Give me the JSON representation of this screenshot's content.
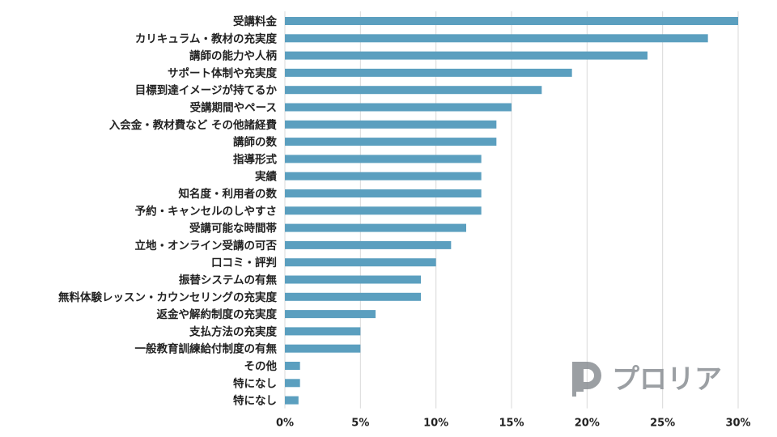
{
  "chart_data": {
    "type": "bar",
    "orientation": "horizontal",
    "categories": [
      "受講料金",
      "カリキュラム・教材の充実度",
      "講師の能力や人柄",
      "サポート体制や充実度",
      "目標到達イメージが持てるか",
      "受講期間やペース",
      "入会金・教材費など その他諸経費",
      "講師の数",
      "指導形式",
      "実績",
      "知名度・利用者の数",
      "予約・キャンセルのしやすさ",
      "受講可能な時間帯",
      "立地・オンライン受講の可否",
      "口コミ・評判",
      "振替システムの有無",
      "無料体験レッスン・カウンセリングの充実度",
      "返金や解約制度の充実度",
      "支払方法の充実度",
      "一般教育訓練給付制度の有無",
      "その他",
      "特になし",
      "特になし"
    ],
    "values": [
      30,
      28,
      24,
      19,
      17,
      15,
      14,
      14,
      13,
      13,
      13,
      13,
      12,
      11,
      10,
      9,
      9,
      6,
      5,
      5,
      1,
      1,
      0.9
    ],
    "xlim": [
      0,
      30
    ],
    "xticks": [
      "0%",
      "5%",
      "10%",
      "15%",
      "20%",
      "25%",
      "30%"
    ],
    "xtick_values": [
      0,
      5,
      10,
      15,
      20,
      25,
      30
    ],
    "grid": "vertical",
    "bar_color": "#5b9fbf",
    "title": "",
    "xlabel": "",
    "ylabel": ""
  },
  "logo": {
    "text": "プロリア",
    "icon": "p-logo-icon",
    "color": "#8a8f94"
  }
}
